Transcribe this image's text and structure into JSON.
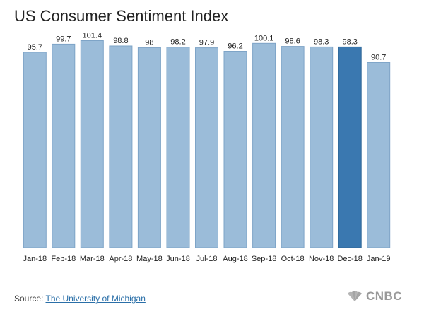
{
  "chart_data": {
    "type": "bar",
    "title": "US Consumer Sentiment Index",
    "categories": [
      "Jan-18",
      "Feb-18",
      "Mar-18",
      "Apr-18",
      "May-18",
      "Jun-18",
      "Jul-18",
      "Aug-18",
      "Sep-18",
      "Oct-18",
      "Nov-18",
      "Dec-18",
      "Jan-19"
    ],
    "values": [
      95.7,
      99.7,
      101.4,
      98.8,
      98,
      98.2,
      97.9,
      96.2,
      100.1,
      98.6,
      98.3,
      98.3,
      90.7
    ],
    "value_labels": [
      "95.7",
      "99.7",
      "101.4",
      "98.8",
      "98",
      "98.2",
      "97.9",
      "96.2",
      "100.1",
      "98.6",
      "98.3",
      "98.3",
      "90.7"
    ],
    "highlight_index": 11,
    "ylim": [
      0,
      104
    ],
    "xlabel": "",
    "ylabel": "",
    "grid": false,
    "colors": {
      "bar": "#9bbcd9",
      "bar_stroke": "#7ea4c7",
      "highlight": "#3a78b0",
      "highlight_stroke": "#2f6697"
    }
  },
  "source": {
    "prefix": "Source: ",
    "link_text": "The University of Michigan"
  },
  "logo": {
    "text": "CNBC",
    "icon": "peacock-icon"
  }
}
